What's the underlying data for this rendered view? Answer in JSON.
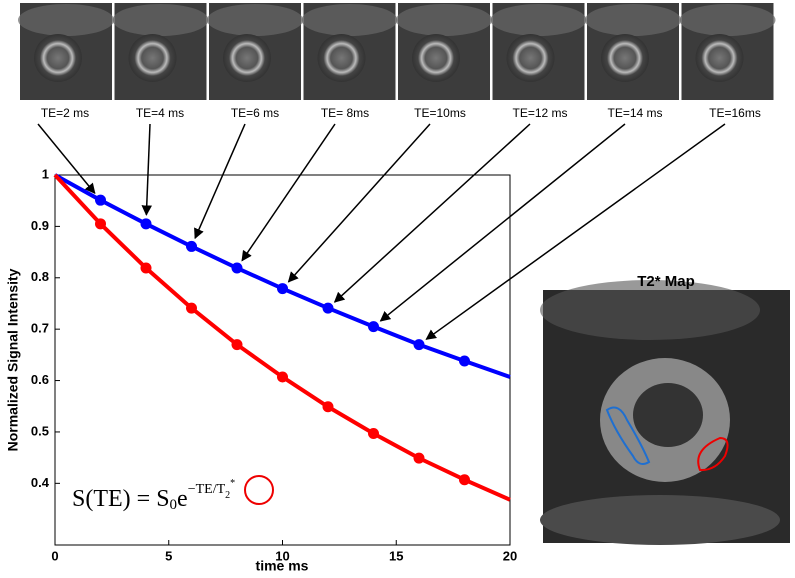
{
  "chart_data": {
    "type": "line",
    "x_label": "time ms",
    "y_label": "Normalized Signal Intensity",
    "x": [
      0,
      2,
      4,
      6,
      8,
      10,
      12,
      14,
      16,
      18,
      20
    ],
    "series": [
      {
        "color": "#0000ff",
        "values": [
          1,
          0.951,
          0.905,
          0.861,
          0.819,
          0.779,
          0.741,
          0.705,
          0.67,
          0.638,
          0.607
        ],
        "markers": [
          false,
          true,
          true,
          true,
          true,
          true,
          true,
          true,
          true,
          true,
          false
        ]
      },
      {
        "color": "#ff0000",
        "values": [
          1,
          0.905,
          0.819,
          0.741,
          0.67,
          0.607,
          0.549,
          0.497,
          0.449,
          0.407,
          0.368
        ],
        "markers": [
          false,
          true,
          true,
          true,
          true,
          true,
          true,
          true,
          true,
          true,
          false
        ]
      }
    ],
    "xlim": [
      0,
      20
    ],
    "xticks": [
      0,
      5,
      10,
      15,
      20
    ],
    "ylim": [
      0.28,
      1
    ],
    "yticks": [
      0.4,
      0.5,
      0.6,
      0.7,
      0.8,
      0.9,
      1
    ],
    "echo_labels": [
      "TE=2 ms",
      "TE=4 ms",
      "TE=6 ms",
      "TE= 8ms",
      "TE=10ms",
      "TE=12 ms",
      "TE=14 ms",
      "TE=16ms"
    ],
    "formula": {
      "lhs": "S(TE) = S",
      "sub": "0",
      "base": "e",
      "exp": "−TE/",
      "exp_base": "T",
      "exp_sub": "2",
      "exp_sup": "*"
    },
    "map_title": "T2* Map"
  }
}
